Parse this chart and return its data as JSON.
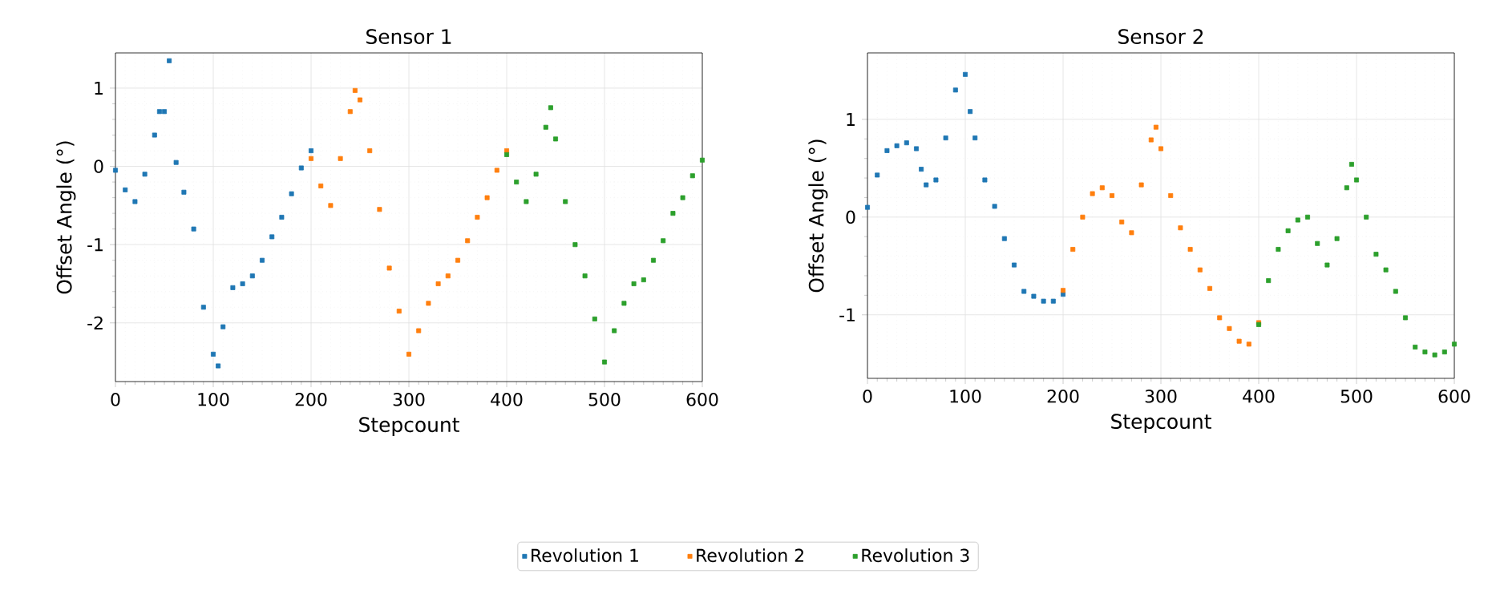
{
  "chart_data": [
    {
      "type": "scatter",
      "title": "Sensor 1",
      "xlabel": "Stepcount",
      "ylabel": "Offset Angle (°)",
      "xlim": [
        0,
        600
      ],
      "ylim": [
        -2.75,
        1.45
      ],
      "xticks": [
        0,
        100,
        200,
        300,
        400,
        500,
        600
      ],
      "yticks": [
        -2,
        -1,
        0,
        1
      ],
      "grid": true,
      "marker": "square",
      "legend": "bottom",
      "series": [
        {
          "name": "Revolution 1",
          "color": "#1f77b4",
          "x": [
            0,
            10,
            20,
            30,
            40,
            45,
            50,
            55,
            62,
            70,
            80,
            90,
            100,
            105,
            110,
            120,
            130,
            140,
            150,
            160,
            170,
            180,
            190,
            200
          ],
          "values": [
            -0.05,
            -0.3,
            -0.45,
            -0.1,
            0.4,
            0.7,
            0.7,
            1.35,
            0.05,
            -0.33,
            -0.8,
            -1.8,
            -2.4,
            -2.55,
            -2.05,
            -1.55,
            -1.5,
            -1.4,
            -1.2,
            -0.9,
            -0.65,
            -0.35,
            -0.02,
            0.2
          ]
        },
        {
          "name": "Revolution 2",
          "color": "#ff7f0e",
          "x": [
            200,
            210,
            220,
            230,
            240,
            245,
            250,
            260,
            270,
            280,
            290,
            300,
            310,
            320,
            330,
            340,
            350,
            360,
            370,
            380,
            390,
            400
          ],
          "values": [
            0.1,
            -0.25,
            -0.5,
            0.1,
            0.7,
            0.97,
            0.85,
            0.2,
            -0.55,
            -1.3,
            -1.85,
            -2.4,
            -2.1,
            -1.75,
            -1.5,
            -1.4,
            -1.2,
            -0.95,
            -0.65,
            -0.4,
            -0.05,
            0.2
          ]
        },
        {
          "name": "Revolution 3",
          "color": "#2ca02c",
          "x": [
            400,
            410,
            420,
            430,
            440,
            445,
            450,
            460,
            470,
            480,
            490,
            500,
            510,
            520,
            530,
            540,
            550,
            560,
            570,
            580,
            590,
            600
          ],
          "values": [
            0.15,
            -0.2,
            -0.45,
            -0.1,
            0.5,
            0.75,
            0.35,
            -0.45,
            -1.0,
            -1.4,
            -1.95,
            -2.5,
            -2.1,
            -1.75,
            -1.5,
            -1.45,
            -1.2,
            -0.95,
            -0.6,
            -0.4,
            -0.12,
            0.08
          ]
        }
      ]
    },
    {
      "type": "scatter",
      "title": "Sensor 2",
      "xlabel": "Stepcount",
      "ylabel": "Offset Angle (°)",
      "xlim": [
        0,
        600
      ],
      "ylim": [
        -1.65,
        1.68
      ],
      "xticks": [
        0,
        100,
        200,
        300,
        400,
        500,
        600
      ],
      "yticks": [
        -1,
        0,
        1
      ],
      "grid": true,
      "marker": "square",
      "series": [
        {
          "color": "#1f77b4",
          "x": [
            0,
            10,
            20,
            30,
            40,
            50,
            55,
            60,
            70,
            80,
            90,
            100,
            105,
            110,
            120,
            130,
            140,
            150,
            160,
            170,
            180,
            190,
            200
          ],
          "values": [
            0.1,
            0.43,
            0.68,
            0.73,
            0.76,
            0.7,
            0.49,
            0.33,
            0.38,
            0.81,
            1.3,
            1.46,
            1.08,
            0.81,
            0.38,
            0.11,
            -0.22,
            -0.49,
            -0.76,
            -0.81,
            -0.86,
            -0.86,
            -0.79
          ]
        },
        {
          "color": "#ff7f0e",
          "x": [
            200,
            210,
            220,
            230,
            240,
            250,
            260,
            270,
            280,
            290,
            295,
            300,
            310,
            320,
            330,
            340,
            350,
            360,
            370,
            380,
            390,
            400
          ],
          "values": [
            -0.75,
            -0.33,
            0,
            0.24,
            0.3,
            0.22,
            -0.05,
            -0.16,
            0.33,
            0.79,
            0.92,
            0.7,
            0.22,
            -0.11,
            -0.33,
            -0.54,
            -0.73,
            -1.03,
            -1.14,
            -1.27,
            -1.3,
            -1.08
          ]
        },
        {
          "color": "#2ca02c",
          "x": [
            400,
            410,
            420,
            430,
            440,
            450,
            460,
            470,
            480,
            490,
            495,
            500,
            510,
            520,
            530,
            540,
            550,
            560,
            570,
            580,
            590,
            600
          ],
          "values": [
            -1.1,
            -0.65,
            -0.33,
            -0.14,
            -0.03,
            0,
            -0.27,
            -0.49,
            -0.22,
            0.3,
            0.54,
            0.38,
            0,
            -0.38,
            -0.54,
            -0.76,
            -1.03,
            -1.33,
            -1.38,
            -1.41,
            -1.38,
            -1.3
          ]
        }
      ]
    }
  ]
}
